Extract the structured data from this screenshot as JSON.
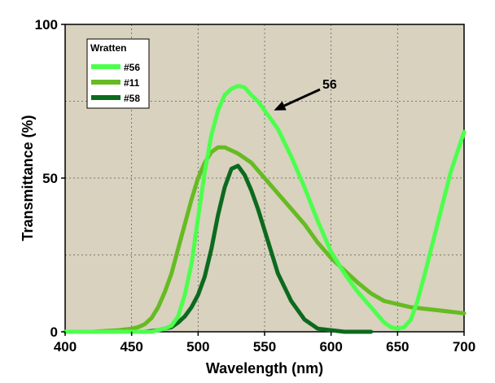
{
  "chart_data": {
    "type": "line",
    "xlabel": "Wavelength (nm)",
    "ylabel": "Transmittance (%)",
    "xlim": [
      400,
      700
    ],
    "ylim": [
      0,
      100
    ],
    "xticks": [
      400,
      450,
      500,
      550,
      600,
      650,
      700
    ],
    "yticks": [
      0,
      50,
      100
    ],
    "xtick_labels": [
      "400",
      "450",
      "500",
      "550",
      "600",
      "650",
      "700"
    ],
    "ytick_labels": [
      "0",
      "50",
      "100"
    ],
    "grid": true,
    "legend": {
      "title": "Wratten",
      "placement": "top-left"
    },
    "background": "#d8d2bf",
    "annotation": {
      "text": "56",
      "arrow_to": [
        557,
        72
      ]
    },
    "series": [
      {
        "name": "#56",
        "color": "#4dff4d",
        "x": [
          400,
          440,
          460,
          465,
          470,
          475,
          480,
          485,
          490,
          495,
          500,
          505,
          510,
          515,
          520,
          525,
          530,
          535,
          540,
          545,
          550,
          555,
          560,
          570,
          580,
          590,
          600,
          610,
          620,
          630,
          640,
          645,
          650,
          655,
          660,
          665,
          670,
          680,
          690,
          700
        ],
        "y": [
          0,
          0,
          0,
          0,
          0.5,
          1,
          2,
          5,
          12,
          22,
          37,
          52,
          64,
          72,
          77,
          79,
          80,
          79.5,
          77,
          75,
          72,
          69,
          66,
          57,
          47,
          36,
          26,
          19,
          13,
          8,
          3,
          1.5,
          1,
          1.5,
          4,
          10,
          18,
          35,
          52,
          65
        ]
      },
      {
        "name": "#11",
        "color": "#66bb22",
        "x": [
          400,
          420,
          440,
          450,
          455,
          460,
          465,
          470,
          475,
          480,
          485,
          490,
          495,
          500,
          505,
          510,
          515,
          520,
          525,
          530,
          540,
          550,
          560,
          570,
          580,
          590,
          600,
          610,
          620,
          630,
          640,
          650,
          660,
          670,
          680,
          690,
          700
        ],
        "y": [
          0,
          0,
          0.5,
          1,
          1.5,
          2.5,
          4.5,
          8,
          13,
          19,
          27,
          35,
          43,
          50,
          55,
          58.5,
          60,
          60,
          59,
          58,
          55,
          50,
          45,
          40,
          35,
          29,
          24,
          20,
          16,
          12.5,
          10,
          9,
          8,
          7.5,
          7,
          6.5,
          6
        ]
      },
      {
        "name": "#58",
        "color": "#0c6a1e",
        "x": [
          400,
          450,
          460,
          470,
          475,
          480,
          485,
          490,
          495,
          500,
          505,
          510,
          515,
          520,
          525,
          530,
          535,
          540,
          545,
          550,
          555,
          560,
          570,
          580,
          590,
          600,
          610,
          620,
          630
        ],
        "y": [
          0,
          0,
          0,
          0.5,
          1,
          1.5,
          3,
          5,
          8,
          12,
          18,
          27,
          38,
          47,
          53,
          54,
          51,
          46,
          40,
          33,
          26,
          19,
          10,
          4,
          1,
          0.5,
          0,
          0,
          0
        ]
      }
    ]
  }
}
